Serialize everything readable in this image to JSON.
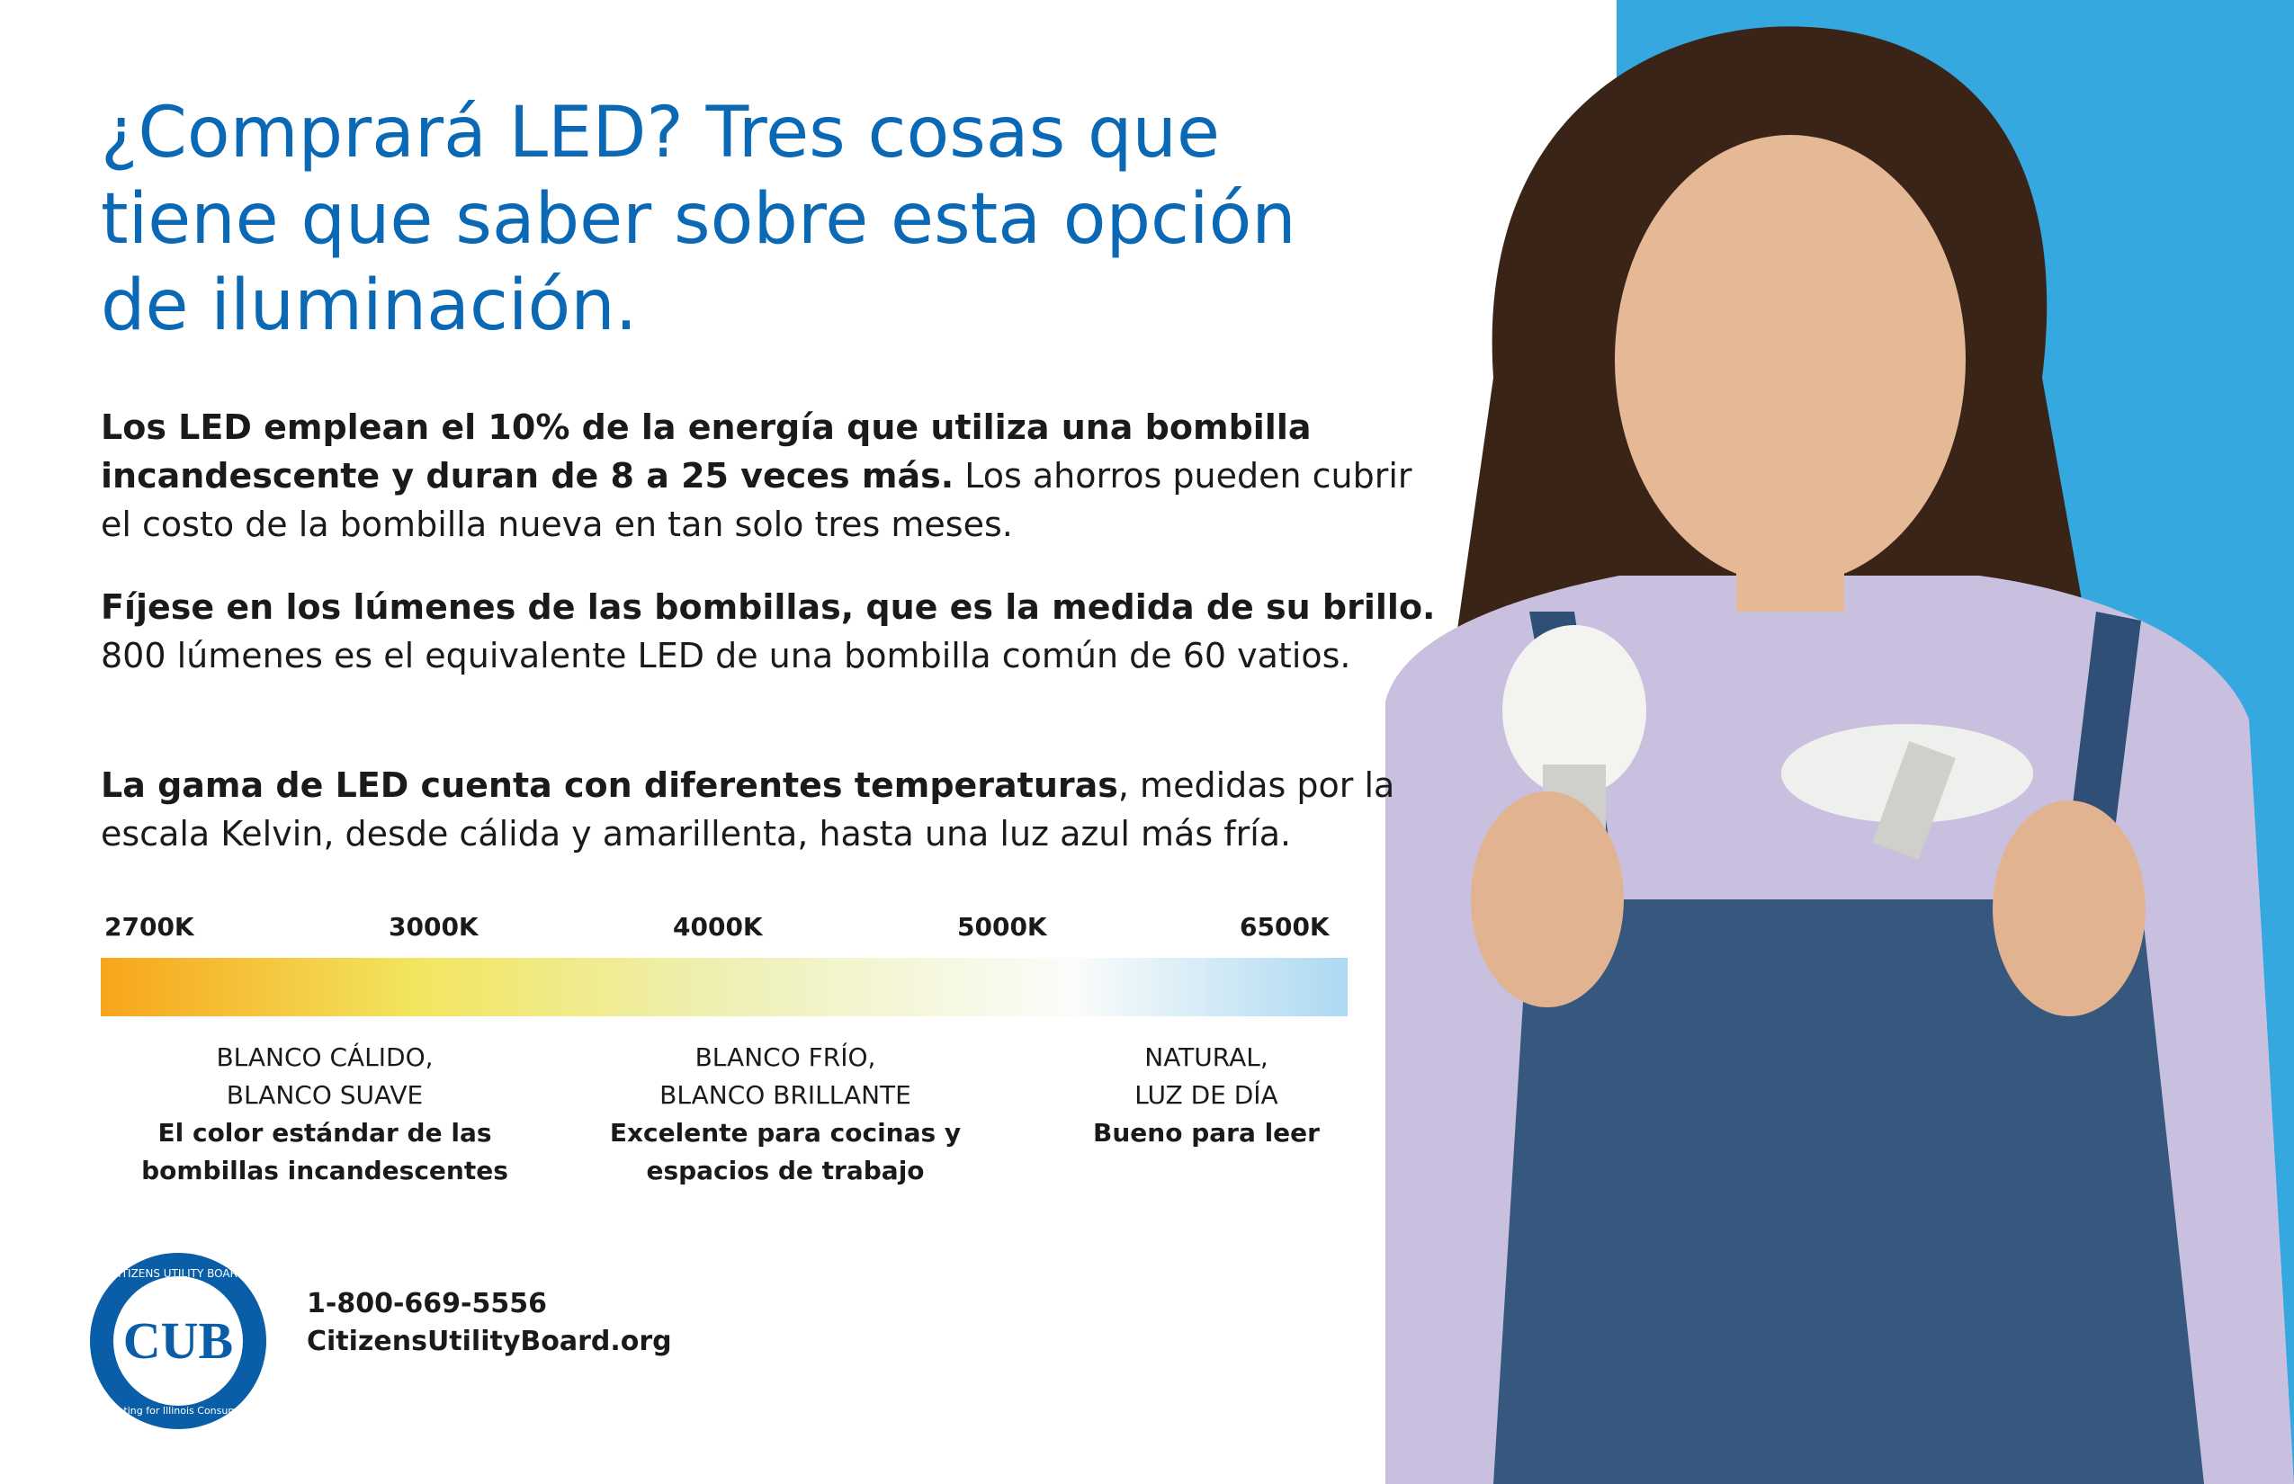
{
  "header": {
    "title_lines": [
      "¿Comprará LED? Tres cosas que",
      "tiene que saber sobre esta opción",
      "de iluminación."
    ]
  },
  "paragraphs": [
    {
      "bold": "Los LED emplean el 10% de la energía que utiliza una bombilla incandescente y duran de 8 a 25 veces más.",
      "regular": "Los ahorros pueden cubrir el costo de la bombilla nueva en tan solo tres meses."
    },
    {
      "bold": "Fíjese en los lúmenes de las bombillas, que es la medida de su brillo.",
      "regular": "800 lúmenes es el equivalente LED de una bombilla común de 60 vatios."
    },
    {
      "bold": "La gama de LED cuenta con diferentes temperaturas",
      "regular": ", medidas por la escala Kelvin, desde cálida y amarillenta, hasta una luz azul más fría."
    }
  ],
  "scale": {
    "labels": [
      "2700K",
      "3000K",
      "4000K",
      "5000K",
      "6500K"
    ],
    "groups": [
      {
        "title_lines": [
          "BLANCO CÁLIDO,",
          "BLANCO SUAVE"
        ],
        "desc_lines": [
          "El color estándar de las",
          "bombillas incandescentes"
        ]
      },
      {
        "title_lines": [
          "BLANCO FRÍO,",
          "BLANCO BRILLANTE"
        ],
        "desc_lines": [
          "Excelente para cocinas y",
          "espacios de trabajo"
        ]
      },
      {
        "title_lines": [
          "NATURAL,",
          "LUZ DE DÍA"
        ],
        "desc_lines": [
          "Bueno para leer"
        ]
      }
    ]
  },
  "footer": {
    "logo_text": "CUB",
    "logo_ring_top": "CITIZENS UTILITY BOARD",
    "logo_ring_bottom": "Fighting for Illinois Consumers",
    "phone": "1-800-669-5556",
    "website": "CitizensUtilityBoard.org"
  }
}
